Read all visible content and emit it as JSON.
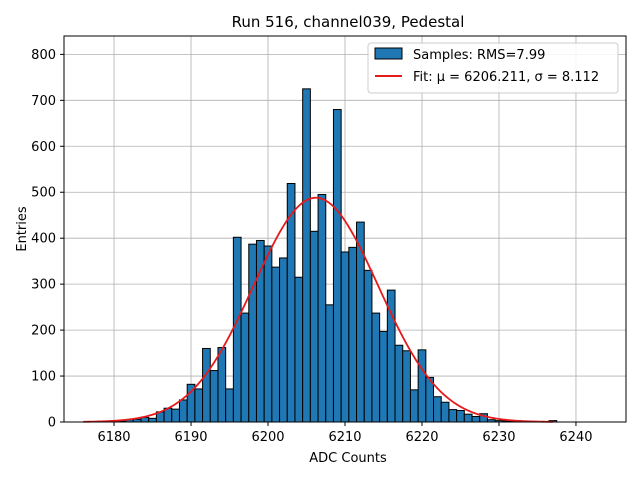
{
  "chart_data": {
    "type": "bar",
    "title": "Run 516, channel039, Pedestal",
    "xlabel": "ADC Counts",
    "ylabel": "Entries",
    "xlim": [
      6173.5,
      6246.5
    ],
    "ylim": [
      0,
      840
    ],
    "xticks": [
      6180,
      6190,
      6200,
      6210,
      6220,
      6230,
      6240
    ],
    "yticks": [
      0,
      100,
      200,
      300,
      400,
      500,
      600,
      700,
      800
    ],
    "grid": true,
    "legend_position": "top-right",
    "histogram": {
      "name": "Samples: RMS=7.99",
      "color": "#1f77b4",
      "edgecolor": "#000000",
      "bin_width": 1,
      "bins": [
        [
          6180,
          2
        ],
        [
          6181,
          2
        ],
        [
          6182,
          5
        ],
        [
          6183,
          6
        ],
        [
          6184,
          10
        ],
        [
          6185,
          8
        ],
        [
          6186,
          22
        ],
        [
          6187,
          30
        ],
        [
          6188,
          28
        ],
        [
          6189,
          48
        ],
        [
          6190,
          82
        ],
        [
          6191,
          72
        ],
        [
          6192,
          160
        ],
        [
          6193,
          112
        ],
        [
          6194,
          162
        ],
        [
          6195,
          72
        ],
        [
          6196,
          402
        ],
        [
          6197,
          237
        ],
        [
          6198,
          387
        ],
        [
          6199,
          395
        ],
        [
          6200,
          383
        ],
        [
          6201,
          337
        ],
        [
          6202,
          357
        ],
        [
          6203,
          519
        ],
        [
          6204,
          315
        ],
        [
          6205,
          725
        ],
        [
          6206,
          415
        ],
        [
          6207,
          495
        ],
        [
          6208,
          255
        ],
        [
          6209,
          680
        ],
        [
          6210,
          370
        ],
        [
          6211,
          380
        ],
        [
          6212,
          435
        ],
        [
          6213,
          330
        ],
        [
          6214,
          237
        ],
        [
          6215,
          197
        ],
        [
          6216,
          287
        ],
        [
          6217,
          167
        ],
        [
          6218,
          155
        ],
        [
          6219,
          70
        ],
        [
          6220,
          157
        ],
        [
          6221,
          97
        ],
        [
          6222,
          55
        ],
        [
          6223,
          43
        ],
        [
          6224,
          27
        ],
        [
          6225,
          25
        ],
        [
          6226,
          17
        ],
        [
          6227,
          12
        ],
        [
          6228,
          18
        ],
        [
          6229,
          5
        ],
        [
          6230,
          3
        ],
        [
          6231,
          2
        ],
        [
          6232,
          2
        ],
        [
          6237,
          3
        ]
      ]
    },
    "fit": {
      "name": "Fit: μ = 6206.211, σ = 8.112",
      "color": "#e41a1c",
      "mu": 6206.211,
      "sigma": 8.112,
      "amplitude": 488,
      "x_range": [
        6176,
        6237
      ]
    }
  }
}
